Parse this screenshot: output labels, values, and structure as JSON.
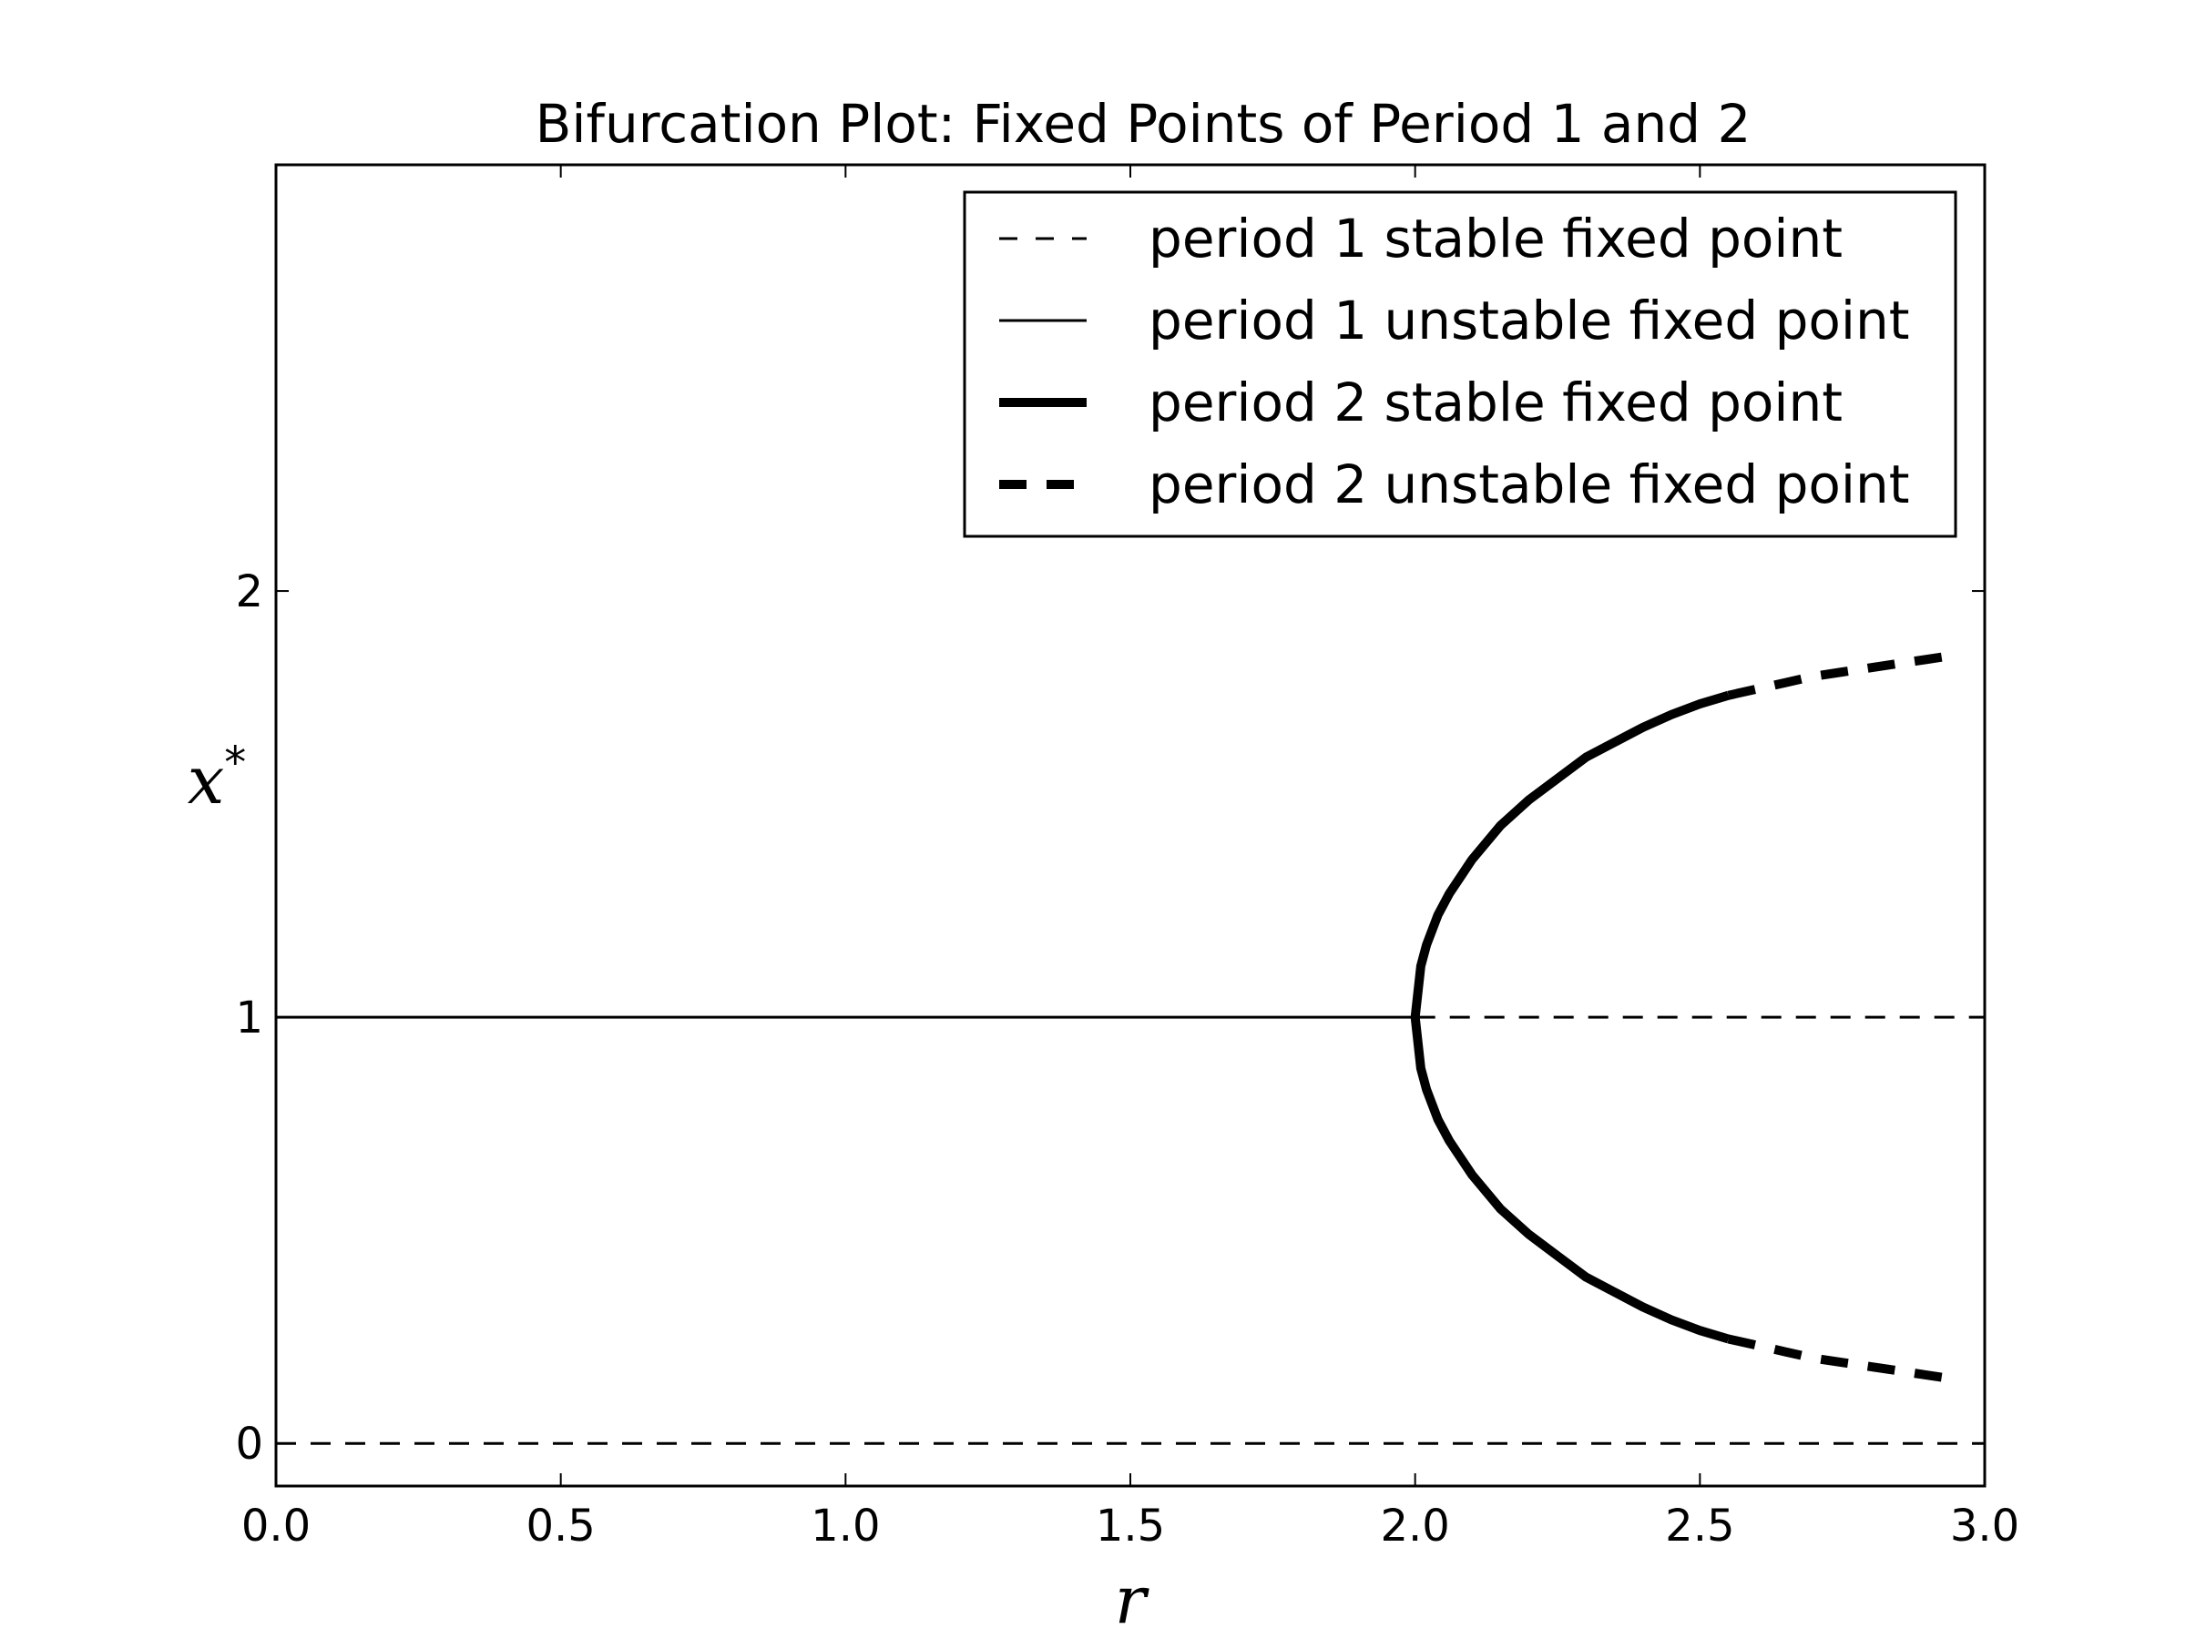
{
  "chart_data": {
    "type": "line",
    "title": "Bifurcation Plot: Fixed Points of Period 1 and 2",
    "xlabel": "r",
    "ylabel_base": "x",
    "ylabel_sup": "*",
    "xlim": [
      0.0,
      3.0
    ],
    "ylim": [
      -0.1,
      3.0
    ],
    "xticks": [
      0.0,
      0.5,
      1.0,
      1.5,
      2.0,
      2.5,
      3.0
    ],
    "xtick_labels": [
      "0.0",
      "0.5",
      "1.0",
      "1.5",
      "2.0",
      "2.5",
      "3.0"
    ],
    "yticks": [
      0,
      1,
      2
    ],
    "ytick_labels": [
      "0",
      "1",
      "2"
    ],
    "grid": false,
    "legend_position": "top-right",
    "colors": {
      "line": "#000000",
      "background": "#ffffff"
    },
    "legend": [
      {
        "label": "period 1 stable fixed point",
        "style": "thin-dashed"
      },
      {
        "label": "period 1 unstable fixed point",
        "style": "thin-solid"
      },
      {
        "label": "period 2 stable fixed point",
        "style": "thick-solid"
      },
      {
        "label": "period 2 unstable fixed point",
        "style": "thick-dashed"
      }
    ],
    "series": [
      {
        "style": "thin-dashed",
        "x": [
          0.0,
          3.0
        ],
        "y": [
          0,
          0
        ]
      },
      {
        "style": "thin-solid",
        "x": [
          0.0,
          2.0
        ],
        "y": [
          1,
          1
        ]
      },
      {
        "style": "thin-dashed",
        "x": [
          2.0,
          3.0
        ],
        "y": [
          1,
          1
        ]
      },
      {
        "style": "thick-solid",
        "x": [
          2.0,
          2.01,
          2.02,
          2.04,
          2.06,
          2.08,
          2.1,
          2.15,
          2.2,
          2.25,
          2.3,
          2.35,
          2.4,
          2.45,
          2.5,
          2.55
        ],
        "y": [
          1.0,
          1.12,
          1.17,
          1.24,
          1.29,
          1.33,
          1.37,
          1.45,
          1.51,
          1.56,
          1.61,
          1.645,
          1.68,
          1.71,
          1.735,
          1.755
        ]
      },
      {
        "style": "thick-solid",
        "x": [
          2.0,
          2.01,
          2.02,
          2.04,
          2.06,
          2.08,
          2.1,
          2.15,
          2.2,
          2.25,
          2.3,
          2.35,
          2.4,
          2.45,
          2.5,
          2.55
        ],
        "y": [
          1.0,
          0.88,
          0.83,
          0.76,
          0.71,
          0.67,
          0.63,
          0.55,
          0.49,
          0.44,
          0.39,
          0.355,
          0.32,
          0.29,
          0.265,
          0.245
        ]
      },
      {
        "style": "thick-dashed",
        "x": [
          2.55,
          2.6,
          2.65,
          2.7,
          2.75,
          2.8,
          2.85,
          2.9,
          2.95
        ],
        "y": [
          1.755,
          1.77,
          1.785,
          1.8,
          1.81,
          1.82,
          1.83,
          1.84,
          1.85
        ]
      },
      {
        "style": "thick-dashed",
        "x": [
          2.55,
          2.6,
          2.65,
          2.7,
          2.75,
          2.8,
          2.85,
          2.9,
          2.95
        ],
        "y": [
          0.245,
          0.23,
          0.215,
          0.2,
          0.19,
          0.18,
          0.17,
          0.16,
          0.15
        ]
      }
    ]
  }
}
